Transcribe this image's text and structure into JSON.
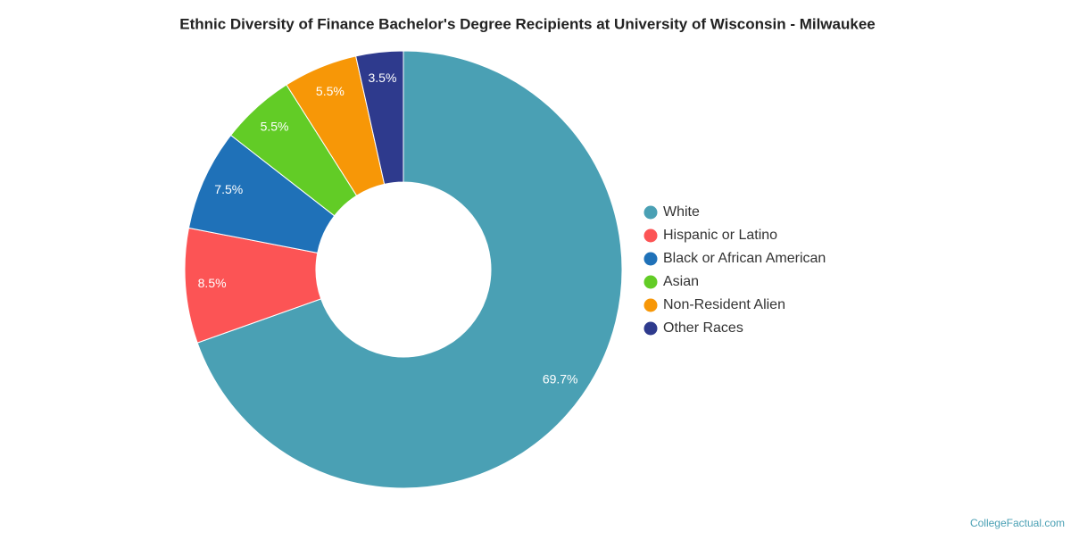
{
  "chart_data": {
    "type": "donut",
    "title": "Ethnic Diversity of Finance Bachelor's Degree Recipients at University of Wisconsin - Milwaukee",
    "categories": [
      "White",
      "Hispanic or Latino",
      "Black or African American",
      "Asian",
      "Non-Resident Alien",
      "Other Races"
    ],
    "values": [
      69.7,
      8.5,
      7.5,
      5.5,
      5.5,
      3.5
    ],
    "value_labels": [
      "69.7%",
      "8.5%",
      "7.5%",
      "5.5%",
      "5.5%",
      "3.5%"
    ],
    "colors": [
      "#4aa0b4",
      "#fc5455",
      "#1f71b8",
      "#62cc26",
      "#f79707",
      "#2e3a8d"
    ],
    "legend": "right",
    "source": "CollegeFactual.com"
  }
}
